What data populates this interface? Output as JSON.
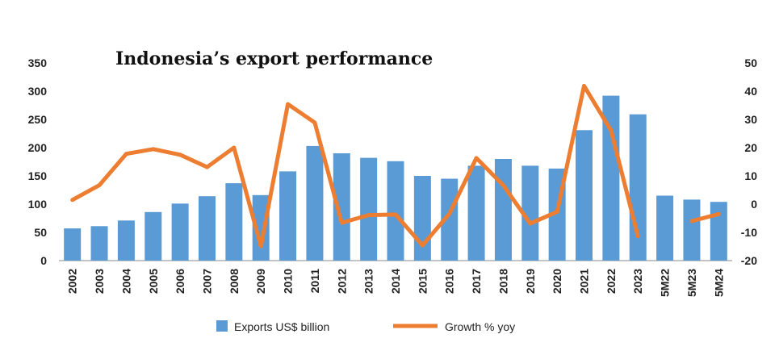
{
  "chart_data": {
    "type": "bar",
    "title": "Indonesia’s export performance",
    "categories": [
      "2002",
      "2003",
      "2004",
      "2005",
      "2006",
      "2007",
      "2008",
      "2009",
      "2010",
      "2011",
      "2012",
      "2013",
      "2014",
      "2015",
      "2016",
      "2017",
      "2018",
      "2019",
      "2020",
      "2021",
      "2022",
      "2023",
      "5M22",
      "5M23",
      "5M24"
    ],
    "series": [
      {
        "name": "Exports US$ billion",
        "type": "bar",
        "axis": "left",
        "color": "#5b9bd5",
        "values": [
          57,
          61,
          71,
          86,
          101,
          114,
          137,
          116,
          158,
          203,
          190,
          182,
          176,
          150,
          145,
          168,
          180,
          168,
          163,
          231,
          292,
          259,
          115,
          108,
          104
        ]
      },
      {
        "name": "Growth % yoy",
        "type": "line",
        "axis": "right",
        "color": "#ed7d31",
        "values": [
          1.5,
          6.7,
          17.8,
          19.5,
          17.5,
          13.1,
          20.0,
          -14.9,
          35.4,
          28.9,
          -6.6,
          -3.9,
          -3.7,
          -14.6,
          -3.4,
          16.3,
          6.7,
          -6.9,
          -2.7,
          41.9,
          26.1,
          -11.3,
          null,
          -6.0,
          -3.5
        ]
      }
    ],
    "yaxis_left": {
      "min": 0,
      "max": 350,
      "ticks": [
        "0",
        "50",
        "100",
        "150",
        "200",
        "250",
        "300",
        "350"
      ]
    },
    "yaxis_right": {
      "min": -20,
      "max": 50,
      "ticks": [
        "-20",
        "-10",
        "0",
        "10",
        "20",
        "30",
        "40",
        "50"
      ]
    },
    "grid": false,
    "legend_position": "bottom"
  }
}
